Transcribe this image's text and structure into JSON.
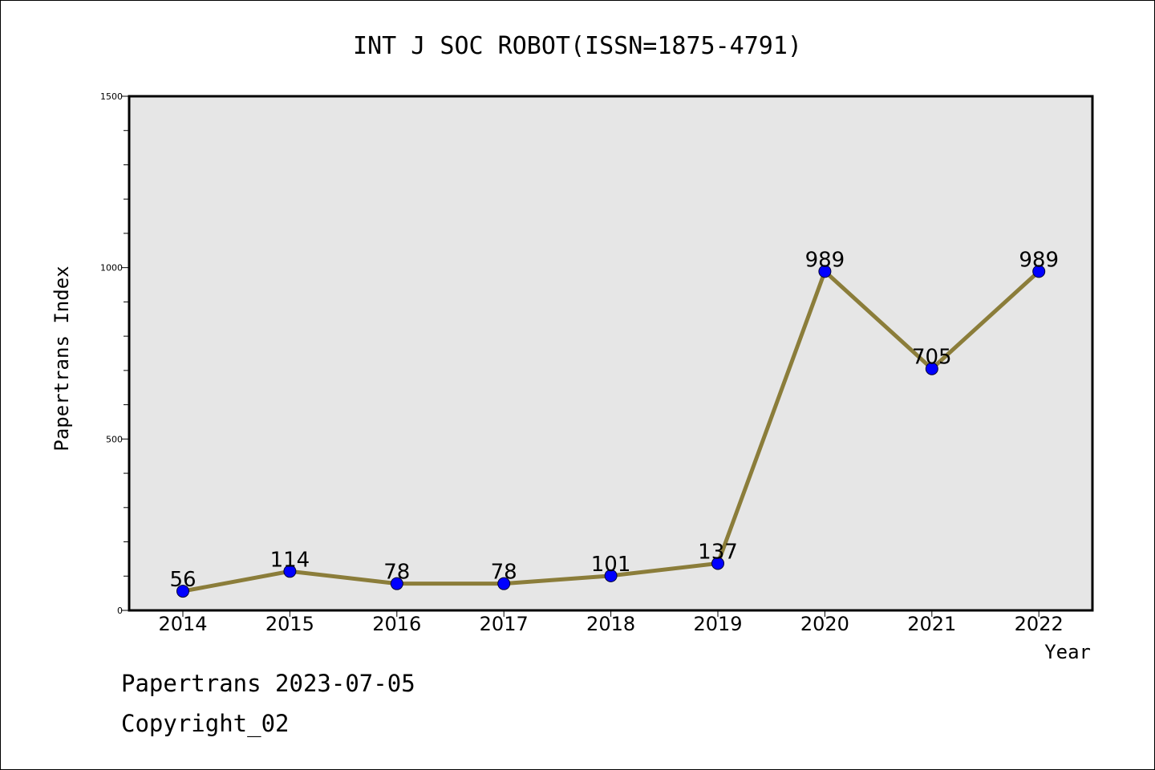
{
  "colors": {
    "plot_background": "#e6e6e6",
    "line": "#8b7d3a",
    "marker": "#0000ff",
    "axis": "#000000"
  },
  "chart_data": {
    "type": "line",
    "title": "INT J SOC ROBOT(ISSN=1875-4791)",
    "xlabel": "Year",
    "ylabel": "Papertrans Index",
    "categories": [
      "2014",
      "2015",
      "2016",
      "2017",
      "2018",
      "2019",
      "2020",
      "2021",
      "2022"
    ],
    "series": [
      {
        "values": [
          56,
          114,
          78,
          78,
          101,
          137,
          989,
          705,
          989
        ]
      }
    ],
    "ylim": [
      0,
      1500
    ],
    "yticks": [
      0,
      500,
      1000,
      1500
    ],
    "y_minor_step": 100,
    "grid": false,
    "legend": "none"
  },
  "footer": {
    "date_line": "Papertrans 2023-07-05",
    "copyright_line": "Copyright_02"
  }
}
